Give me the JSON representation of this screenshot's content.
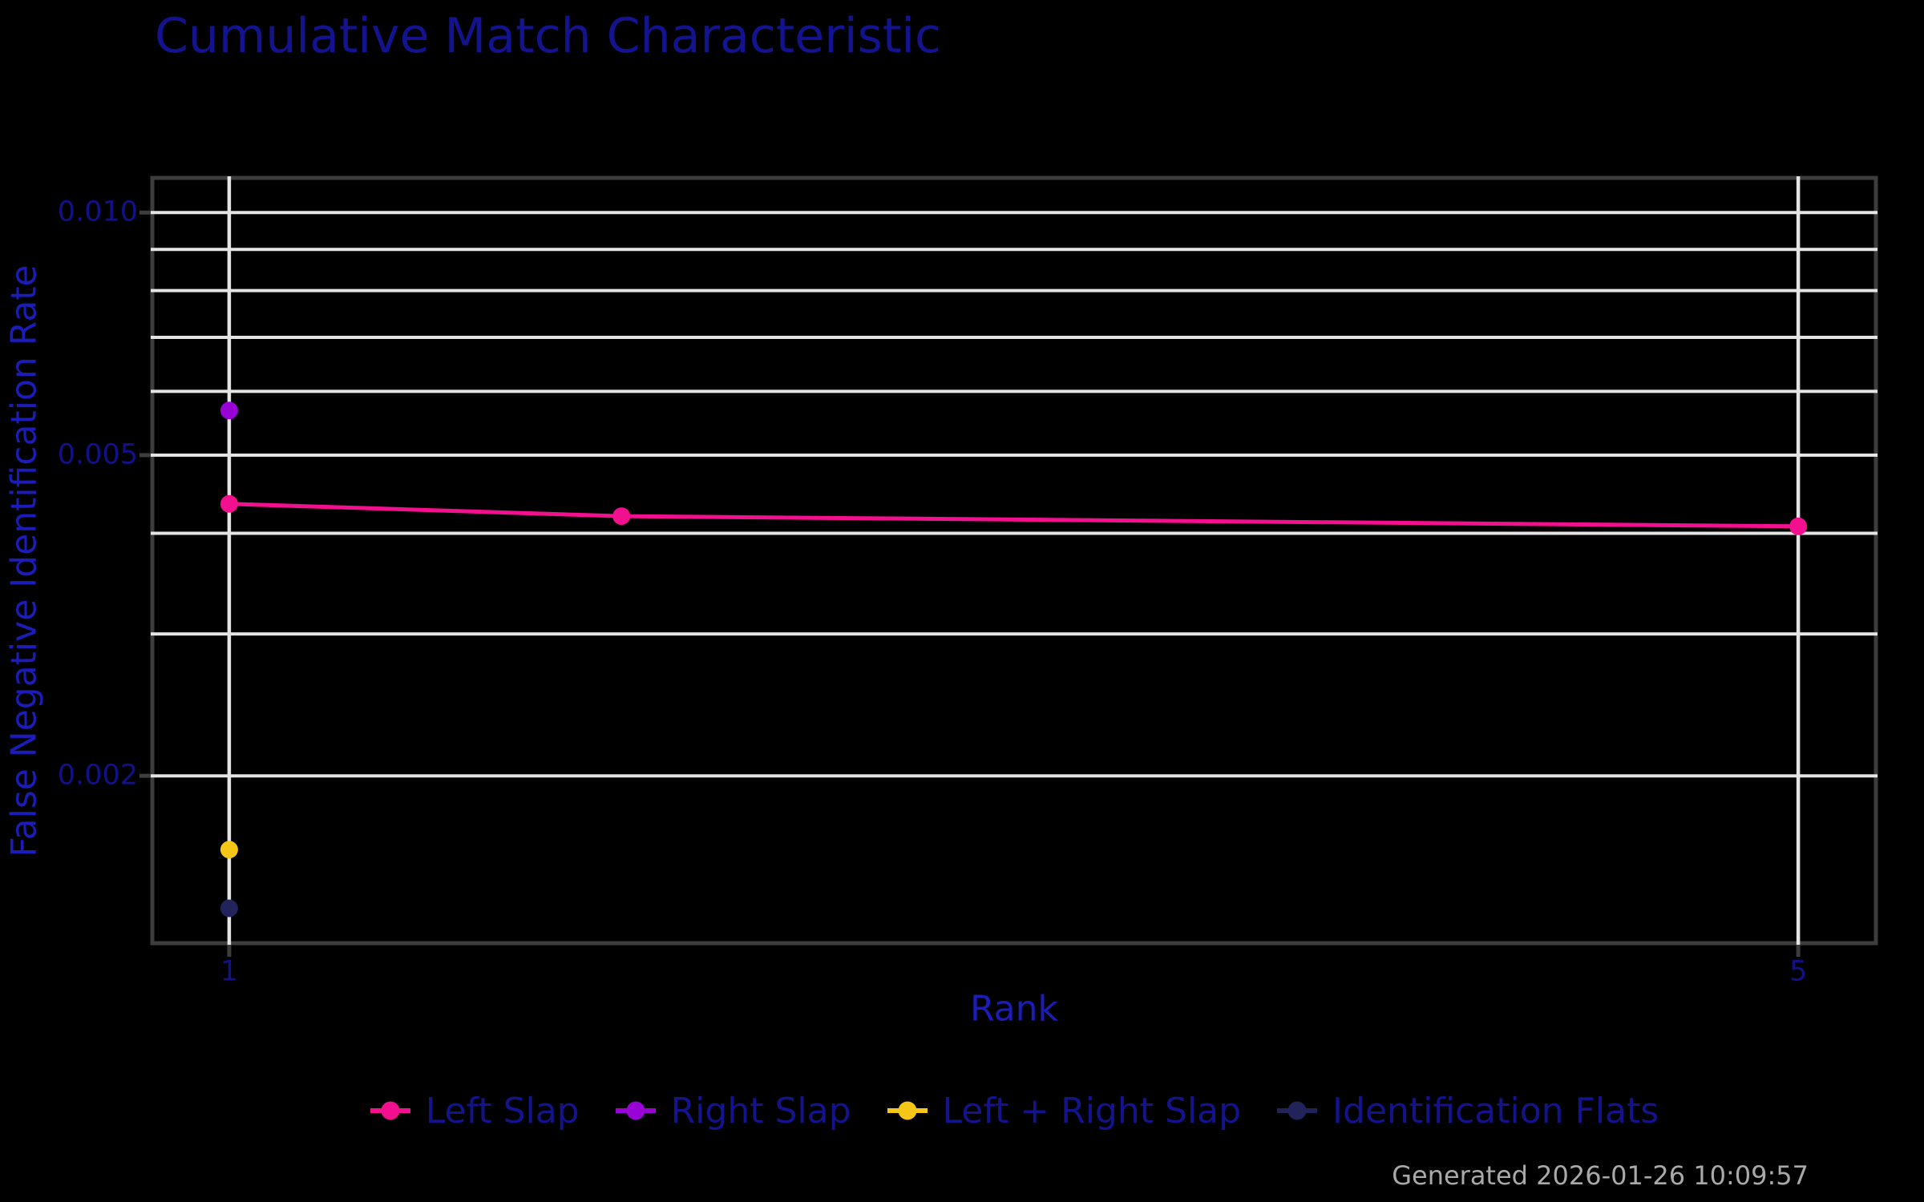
{
  "title": "Cumulative Match Characteristic",
  "footer": {
    "generated": "Generated 2026-01-26 10:09:57"
  },
  "colors": {
    "background": "#000000",
    "title": "#13138F",
    "axis_title": "#1C1CB8",
    "tick_label": "#11118A",
    "legend_text": "#13138C",
    "grid": "#E4E4E4",
    "frame": "#3D3D3D",
    "timestamp": "#A9A9A9"
  },
  "chart_data": {
    "type": "line",
    "title": "Cumulative Match Characteristic",
    "grid": true,
    "legend_position": "bottom",
    "x_axis": {
      "label": "Rank",
      "scale": "linear",
      "range": [
        0.804,
        5.198
      ],
      "ticks": [
        {
          "value": 1,
          "label": "1"
        },
        {
          "value": 5,
          "label": "5"
        }
      ],
      "gridlines": [
        1,
        5
      ]
    },
    "y_axis": {
      "label": "False Negative Identification Rate",
      "scale": "log",
      "range": [
        0.00124,
        0.01104
      ],
      "ticks": [
        {
          "value": 0.01,
          "label": "0.010"
        },
        {
          "value": 0.005,
          "label": "0.005"
        },
        {
          "value": 0.002,
          "label": "0.002"
        }
      ],
      "gridlines": [
        0.01,
        0.009,
        0.008,
        0.007,
        0.006,
        0.005,
        0.004,
        0.003,
        0.002
      ]
    },
    "series": [
      {
        "name": "Left Slap",
        "color": "#F2108E",
        "points": [
          [
            1,
            0.00435
          ],
          [
            2,
            0.0042
          ],
          [
            5,
            0.00408
          ]
        ]
      },
      {
        "name": "Right Slap",
        "color": "#9803D6",
        "points": [
          [
            1,
            0.00568
          ]
        ]
      },
      {
        "name": "Left + Right Slap",
        "color": "#F5C616",
        "points": [
          [
            1,
            0.00162
          ]
        ]
      },
      {
        "name": "Identification Flats",
        "color": "#23235C",
        "points": [
          [
            1,
            0.00137
          ]
        ]
      }
    ]
  }
}
